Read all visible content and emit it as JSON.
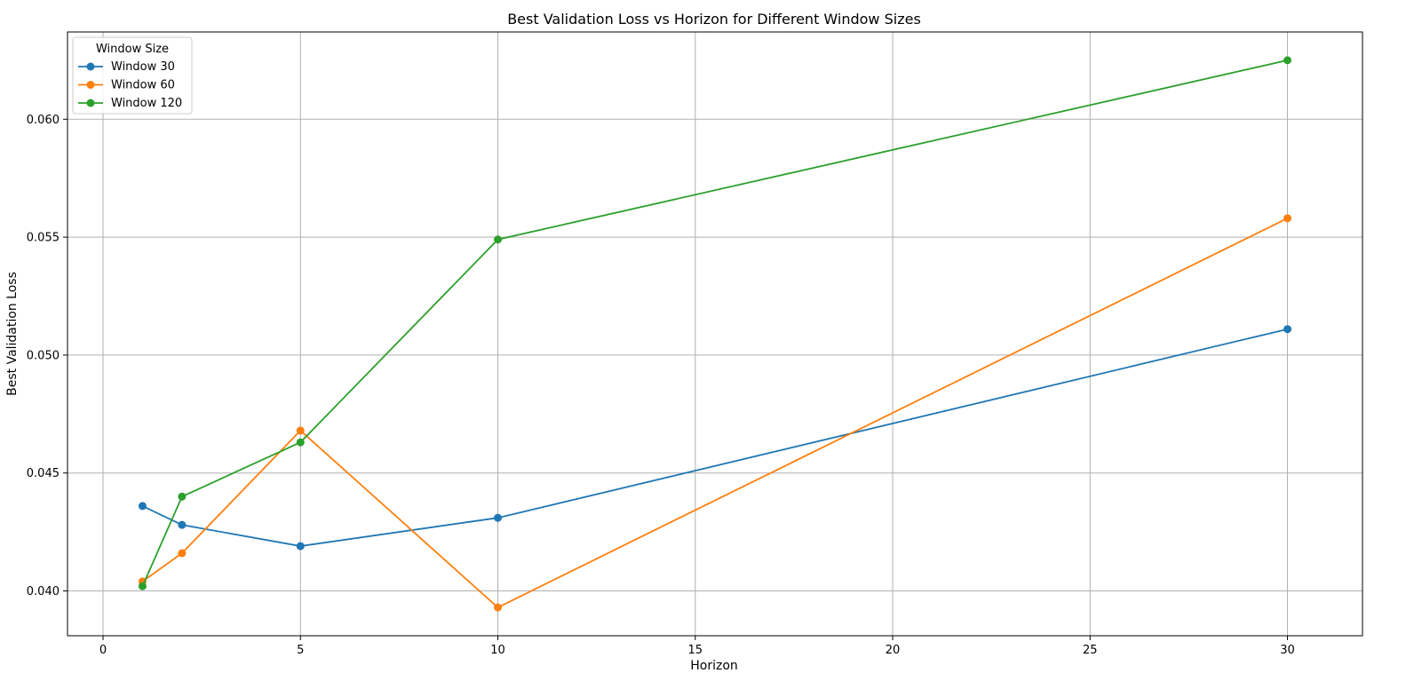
{
  "chart_data": {
    "type": "line",
    "title": "Best Validation Loss vs Horizon for Different Window Sizes",
    "xlabel": "Horizon",
    "ylabel": "Best Validation Loss",
    "xlim": [
      -0.9,
      31.9
    ],
    "ylim": [
      0.0381,
      0.0637
    ],
    "xticks": [
      0,
      5,
      10,
      15,
      20,
      25,
      30
    ],
    "xtick_labels": [
      "0",
      "5",
      "10",
      "15",
      "20",
      "25",
      "30"
    ],
    "yticks": [
      0.04,
      0.045,
      0.05,
      0.055,
      0.06
    ],
    "ytick_labels": [
      "0.040",
      "0.045",
      "0.050",
      "0.055",
      "0.060"
    ],
    "grid": true,
    "legend": {
      "title": "Window Size",
      "position": "top-left"
    },
    "x": [
      1,
      2,
      5,
      10,
      30
    ],
    "series": [
      {
        "name": "Window 30",
        "color": "#1f77b4",
        "values": [
          0.0436,
          0.0428,
          0.0419,
          0.0431,
          0.0511
        ]
      },
      {
        "name": "Window 60",
        "color": "#ff7f0e",
        "values": [
          0.0404,
          0.0416,
          0.0468,
          0.0393,
          0.0558
        ]
      },
      {
        "name": "Window 120",
        "color": "#2ca02c",
        "values": [
          0.0402,
          0.044,
          0.0463,
          0.0549,
          0.0625
        ]
      }
    ]
  }
}
